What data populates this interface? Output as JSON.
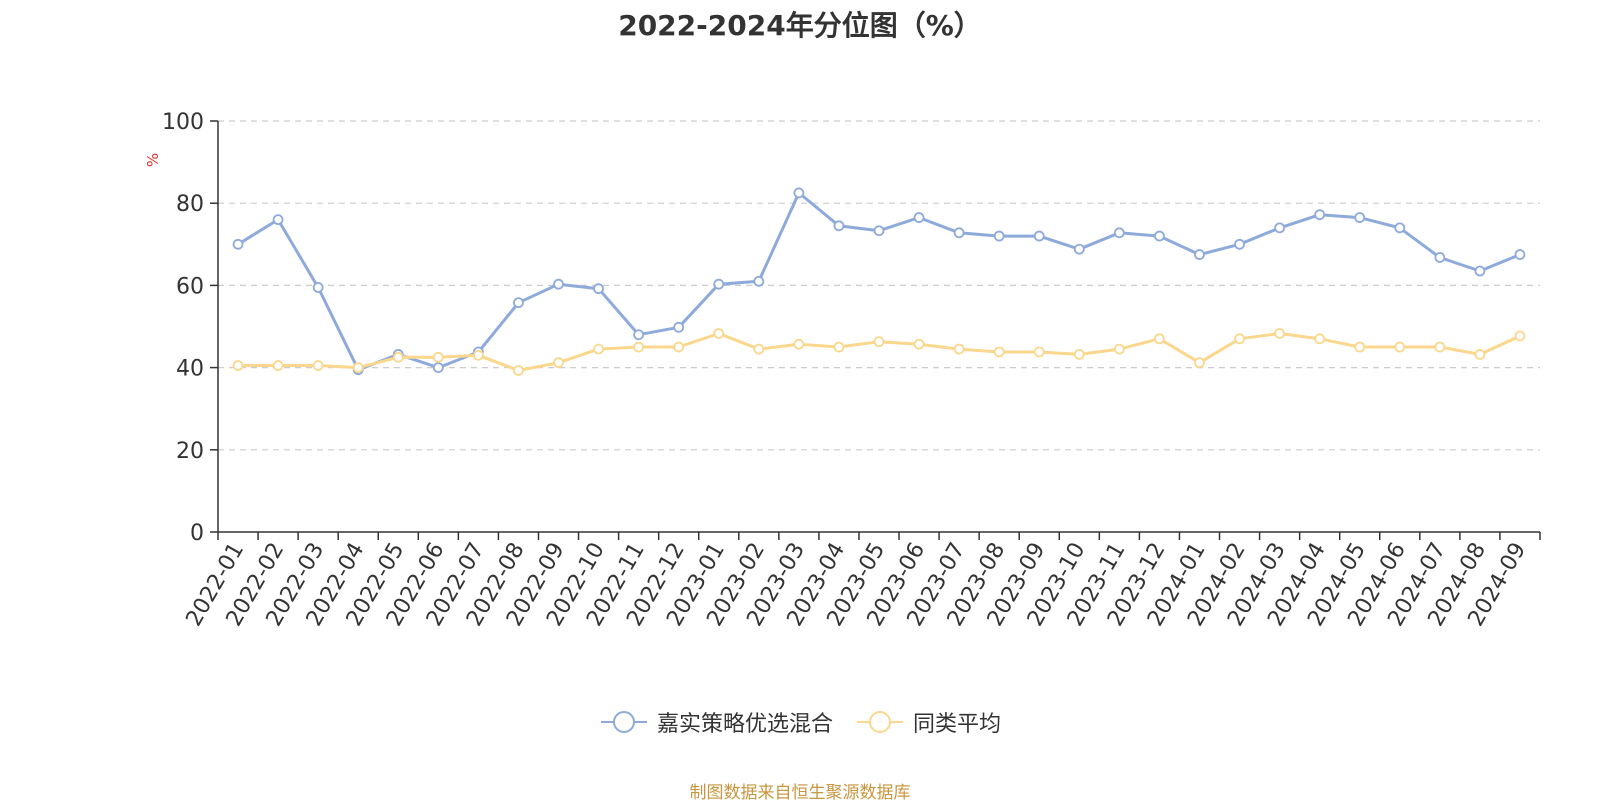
{
  "chart_data": {
    "type": "line",
    "title": "2022-2024年分位图（%）",
    "ylabel": "%",
    "xlabel": "",
    "ylim": [
      0,
      100
    ],
    "yticks": [
      0,
      20,
      40,
      60,
      80,
      100
    ],
    "grid": true,
    "legend_position": "bottom",
    "categories": [
      "2022-01",
      "2022-02",
      "2022-03",
      "2022-04",
      "2022-05",
      "2022-06",
      "2022-07",
      "2022-08",
      "2022-09",
      "2022-10",
      "2022-11",
      "2022-12",
      "2023-01",
      "2023-02",
      "2023-03",
      "2023-04",
      "2023-05",
      "2023-06",
      "2023-07",
      "2023-08",
      "2023-09",
      "2023-10",
      "2023-11",
      "2023-12",
      "2024-01",
      "2024-02",
      "2024-03",
      "2024-04",
      "2024-05",
      "2024-06",
      "2024-07",
      "2024-08",
      "2024-09"
    ],
    "series": [
      {
        "name": "嘉实策略优选混合",
        "color": "#8eaadb",
        "values": [
          70.0,
          76.0,
          59.5,
          39.5,
          43.2,
          40.0,
          43.8,
          55.8,
          60.3,
          59.2,
          48.0,
          49.8,
          60.3,
          61.0,
          82.5,
          74.5,
          73.3,
          76.5,
          72.8,
          72.0,
          72.0,
          68.8,
          72.8,
          72.0,
          67.5,
          70.0,
          74.0,
          77.2,
          76.5,
          74.0,
          66.8,
          63.5,
          67.5
        ]
      },
      {
        "name": "同类平均",
        "color": "#fad78c",
        "values": [
          40.5,
          40.5,
          40.5,
          40.0,
          42.5,
          42.5,
          43.0,
          39.3,
          41.2,
          44.5,
          45.0,
          45.0,
          48.3,
          44.5,
          45.7,
          45.0,
          46.3,
          45.7,
          44.5,
          43.8,
          43.8,
          43.2,
          44.5,
          47.0,
          41.2,
          47.0,
          48.3,
          47.0,
          45.0,
          45.0,
          45.0,
          43.2,
          47.7
        ]
      }
    ]
  },
  "source_text": "制图数据来自恒生聚源数据库"
}
